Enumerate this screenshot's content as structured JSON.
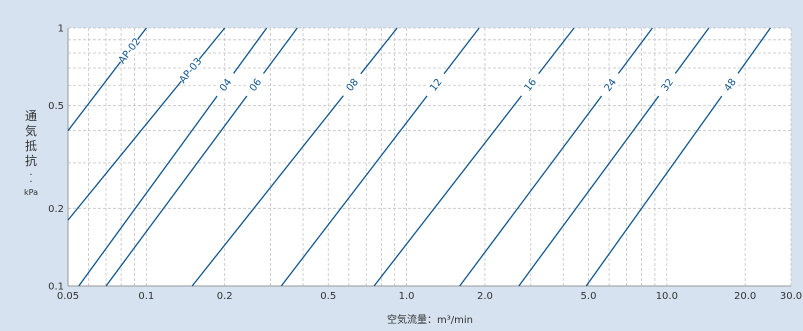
{
  "chart_data": {
    "type": "line",
    "scale": {
      "x": "log",
      "y": "log"
    },
    "xlim": [
      0.05,
      30.0
    ],
    "ylim": [
      0.1,
      1
    ],
    "xlabel": "空気流量：m³/min",
    "ylabel": "通気抵抗：kPa",
    "grid": true,
    "x_ticks": [
      {
        "value": 0.05,
        "label": "0.05"
      },
      {
        "value": 0.1,
        "label": "0.1"
      },
      {
        "value": 0.2,
        "label": "0.2"
      },
      {
        "value": 0.5,
        "label": "0.5"
      },
      {
        "value": 1.0,
        "label": "1.0"
      },
      {
        "value": 2.0,
        "label": "2.0"
      },
      {
        "value": 5.0,
        "label": "5.0"
      },
      {
        "value": 10.0,
        "label": "10.0"
      },
      {
        "value": 20.0,
        "label": "20.0"
      },
      {
        "value": 30.0,
        "label": "30.0"
      }
    ],
    "y_ticks": [
      {
        "value": 0.1,
        "label": "0.1"
      },
      {
        "value": 0.2,
        "label": "0.2"
      },
      {
        "value": 0.5,
        "label": "0.5"
      },
      {
        "value": 1,
        "label": "1"
      }
    ],
    "series": [
      {
        "name": "AP-02",
        "points": [
          [
            0.05,
            0.4
          ],
          [
            0.1,
            1
          ]
        ]
      },
      {
        "name": "AP-03",
        "points": [
          [
            0.05,
            0.18
          ],
          [
            0.2,
            1
          ]
        ]
      },
      {
        "name": "04",
        "points": [
          [
            0.055,
            0.1
          ],
          [
            0.29,
            1
          ]
        ]
      },
      {
        "name": "06",
        "points": [
          [
            0.07,
            0.1
          ],
          [
            0.38,
            1
          ]
        ]
      },
      {
        "name": "08",
        "points": [
          [
            0.15,
            0.1
          ],
          [
            0.92,
            1
          ]
        ]
      },
      {
        "name": "12",
        "points": [
          [
            0.33,
            0.1
          ],
          [
            1.9,
            1
          ]
        ]
      },
      {
        "name": "16",
        "points": [
          [
            0.75,
            0.1
          ],
          [
            4.4,
            1
          ]
        ]
      },
      {
        "name": "24",
        "points": [
          [
            1.6,
            0.1
          ],
          [
            8.8,
            1
          ]
        ]
      },
      {
        "name": "32",
        "points": [
          [
            2.7,
            0.1
          ],
          [
            14.5,
            1
          ]
        ]
      },
      {
        "name": "48",
        "points": [
          [
            4.9,
            0.1
          ],
          [
            25.0,
            1
          ]
        ]
      }
    ],
    "colors": {
      "line": "#11568f",
      "grid": "#c4c4c4",
      "background": "#d6e2ef",
      "plot": "#ffffff",
      "text": "#333333"
    }
  }
}
